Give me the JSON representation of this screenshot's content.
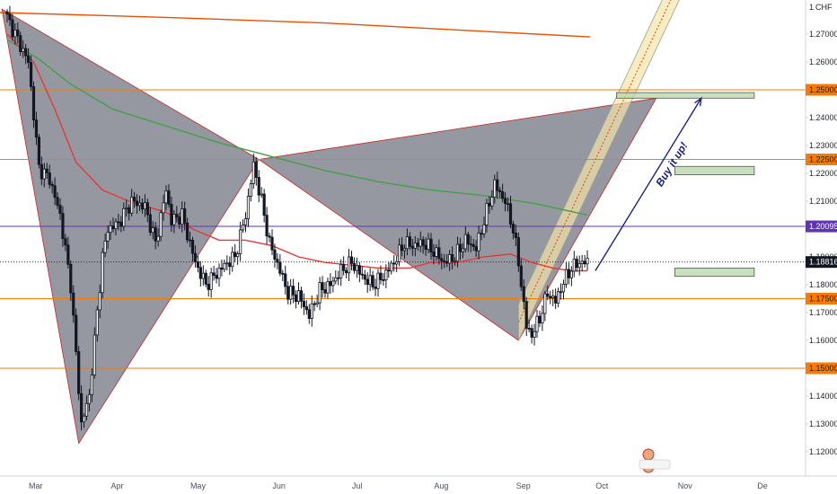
{
  "chart_data": {
    "type": "candlestick",
    "currency_label": "CHF",
    "y_axis_top_label": "1",
    "months": [
      "Mar",
      "Apr",
      "May",
      "Jun",
      "Jul",
      "Aug",
      "Sep",
      "Oct",
      "Nov",
      "De"
    ],
    "month_day_index": [
      0,
      31,
      61,
      92,
      122,
      153,
      184,
      214,
      245,
      275
    ],
    "y_ticks": [
      "1.27000",
      "1.26000",
      "1.24000",
      "1.23000",
      "1.22000",
      "1.21000",
      "1.19000",
      "1.18000",
      "1.17000",
      "1.16000",
      "1.14000",
      "1.13000",
      "1.12000"
    ],
    "ylim": [
      1.1133,
      1.2783
    ],
    "horizontal_levels": [
      {
        "label": "1.25000",
        "value": 1.25,
        "color": "#f57c00"
      },
      {
        "label": "1.22500",
        "value": 1.225,
        "color": "#f57c00"
      },
      {
        "label": "1.20095",
        "value": 1.20095,
        "color": "#5e35b1"
      },
      {
        "label": "1.18816",
        "value": 1.18816,
        "color": "#131722"
      },
      {
        "label": "1.17500",
        "value": 1.175,
        "color": "#f57c00"
      },
      {
        "label": "1.15000",
        "value": 1.15,
        "color": "#f57c00"
      }
    ],
    "anchors": [
      {
        "day": 0,
        "close": 1.276
      },
      {
        "day": 4,
        "close": 1.268
      },
      {
        "day": 8,
        "close": 1.26
      },
      {
        "day": 12,
        "close": 1.222
      },
      {
        "day": 16,
        "close": 1.218
      },
      {
        "day": 20,
        "close": 1.205
      },
      {
        "day": 24,
        "close": 1.18
      },
      {
        "day": 26,
        "close": 1.155
      },
      {
        "day": 28,
        "close": 1.13
      },
      {
        "day": 31,
        "close": 1.14
      },
      {
        "day": 33,
        "close": 1.16
      },
      {
        "day": 36,
        "close": 1.19
      },
      {
        "day": 38,
        "close": 1.2
      },
      {
        "day": 42,
        "close": 1.202
      },
      {
        "day": 47,
        "close": 1.21
      },
      {
        "day": 52,
        "close": 1.208
      },
      {
        "day": 56,
        "close": 1.195
      },
      {
        "day": 60,
        "close": 1.214
      },
      {
        "day": 62,
        "close": 1.203
      },
      {
        "day": 66,
        "close": 1.205
      },
      {
        "day": 71,
        "close": 1.188
      },
      {
        "day": 75,
        "close": 1.18
      },
      {
        "day": 78,
        "close": 1.183
      },
      {
        "day": 82,
        "close": 1.187
      },
      {
        "day": 86,
        "close": 1.19
      },
      {
        "day": 90,
        "close": 1.205
      },
      {
        "day": 93,
        "close": 1.223
      },
      {
        "day": 96,
        "close": 1.21
      },
      {
        "day": 99,
        "close": 1.195
      },
      {
        "day": 103,
        "close": 1.185
      },
      {
        "day": 106,
        "close": 1.177
      },
      {
        "day": 110,
        "close": 1.176
      },
      {
        "day": 114,
        "close": 1.169
      },
      {
        "day": 118,
        "close": 1.178
      },
      {
        "day": 122,
        "close": 1.18
      },
      {
        "day": 126,
        "close": 1.185
      },
      {
        "day": 130,
        "close": 1.188
      },
      {
        "day": 134,
        "close": 1.183
      },
      {
        "day": 138,
        "close": 1.18
      },
      {
        "day": 142,
        "close": 1.183
      },
      {
        "day": 146,
        "close": 1.188
      },
      {
        "day": 150,
        "close": 1.195
      },
      {
        "day": 153,
        "close": 1.194
      },
      {
        "day": 157,
        "close": 1.195
      },
      {
        "day": 161,
        "close": 1.192
      },
      {
        "day": 165,
        "close": 1.188
      },
      {
        "day": 169,
        "close": 1.19
      },
      {
        "day": 173,
        "close": 1.196
      },
      {
        "day": 177,
        "close": 1.193
      },
      {
        "day": 180,
        "close": 1.203
      },
      {
        "day": 184,
        "close": 1.216
      },
      {
        "day": 188,
        "close": 1.21
      },
      {
        "day": 191,
        "close": 1.2
      },
      {
        "day": 193,
        "close": 1.188
      },
      {
        "day": 196,
        "close": 1.165
      },
      {
        "day": 198,
        "close": 1.162
      },
      {
        "day": 201,
        "close": 1.168
      },
      {
        "day": 204,
        "close": 1.177
      },
      {
        "day": 207,
        "close": 1.174
      },
      {
        "day": 210,
        "close": 1.181
      },
      {
        "day": 213,
        "close": 1.186
      },
      {
        "day": 216,
        "close": 1.188
      },
      {
        "day": 219,
        "close": 1.188
      }
    ],
    "ma_slow": [
      {
        "day": 0,
        "value": 1.268
      },
      {
        "day": 12,
        "value": 1.261
      },
      {
        "day": 24,
        "value": 1.252
      },
      {
        "day": 40,
        "value": 1.243
      },
      {
        "day": 60,
        "value": 1.237
      },
      {
        "day": 80,
        "value": 1.231
      },
      {
        "day": 100,
        "value": 1.226
      },
      {
        "day": 120,
        "value": 1.221
      },
      {
        "day": 140,
        "value": 1.217
      },
      {
        "day": 160,
        "value": 1.214
      },
      {
        "day": 180,
        "value": 1.212
      },
      {
        "day": 200,
        "value": 1.209
      },
      {
        "day": 219,
        "value": 1.205
      }
    ],
    "ma_fast": [
      {
        "day": 0,
        "value": 1.27
      },
      {
        "day": 10,
        "value": 1.26
      },
      {
        "day": 18,
        "value": 1.243
      },
      {
        "day": 26,
        "value": 1.224
      },
      {
        "day": 36,
        "value": 1.214
      },
      {
        "day": 46,
        "value": 1.21
      },
      {
        "day": 60,
        "value": 1.206
      },
      {
        "day": 70,
        "value": 1.2
      },
      {
        "day": 80,
        "value": 1.196
      },
      {
        "day": 90,
        "value": 1.196
      },
      {
        "day": 100,
        "value": 1.194
      },
      {
        "day": 110,
        "value": 1.19
      },
      {
        "day": 120,
        "value": 1.188
      },
      {
        "day": 130,
        "value": 1.187
      },
      {
        "day": 140,
        "value": 1.186
      },
      {
        "day": 152,
        "value": 1.186
      },
      {
        "day": 160,
        "value": 1.188
      },
      {
        "day": 170,
        "value": 1.188
      },
      {
        "day": 180,
        "value": 1.19
      },
      {
        "day": 190,
        "value": 1.191
      },
      {
        "day": 198,
        "value": 1.188
      },
      {
        "day": 206,
        "value": 1.186
      },
      {
        "day": 213,
        "value": 1.185
      },
      {
        "day": 219,
        "value": 1.185
      }
    ],
    "ma_long": [
      {
        "day": -12,
        "value": 1.278
      },
      {
        "day": 60,
        "value": 1.276
      },
      {
        "day": 120,
        "value": 1.274
      },
      {
        "day": 180,
        "value": 1.271
      },
      {
        "day": 220,
        "value": 1.269
      }
    ],
    "harmonic_pattern": {
      "X": {
        "day": -2,
        "value": 1.279
      },
      "A": {
        "day": 27,
        "value": 1.123
      },
      "B": {
        "day": 95,
        "value": 1.225
      },
      "C": {
        "day": 193,
        "value": 1.16
      },
      "D": {
        "day": 245,
        "value": 1.247
      }
    },
    "channel": {
      "start_day": 193,
      "start_value": 1.16,
      "end_day": 260,
      "end_value": 1.295,
      "width": 0.013
    },
    "target_zones": [
      {
        "day_from": 230,
        "day_to": 282,
        "value_from": 1.249,
        "value_to": 1.247
      },
      {
        "day_from": 252,
        "day_to": 282,
        "value_from": 1.2225,
        "value_to": 1.2195
      },
      {
        "day_from": 252,
        "day_to": 282,
        "value_from": 1.186,
        "value_to": 1.183
      }
    ],
    "annotation_text": "Buy it up!",
    "annotation_arrow": {
      "from_day": 222,
      "from_value": 1.185,
      "to_day": 262,
      "to_value": 1.247
    },
    "colors": {
      "up": "#ffffff",
      "down": "#131722",
      "ma_fast": "#e53935",
      "ma_slow": "#43a047",
      "ma_long": "#e65100",
      "pattern": "#787b86",
      "channel": "#f2e6a6",
      "arrow": "#1a237e",
      "annotation": "#1a237e"
    }
  }
}
